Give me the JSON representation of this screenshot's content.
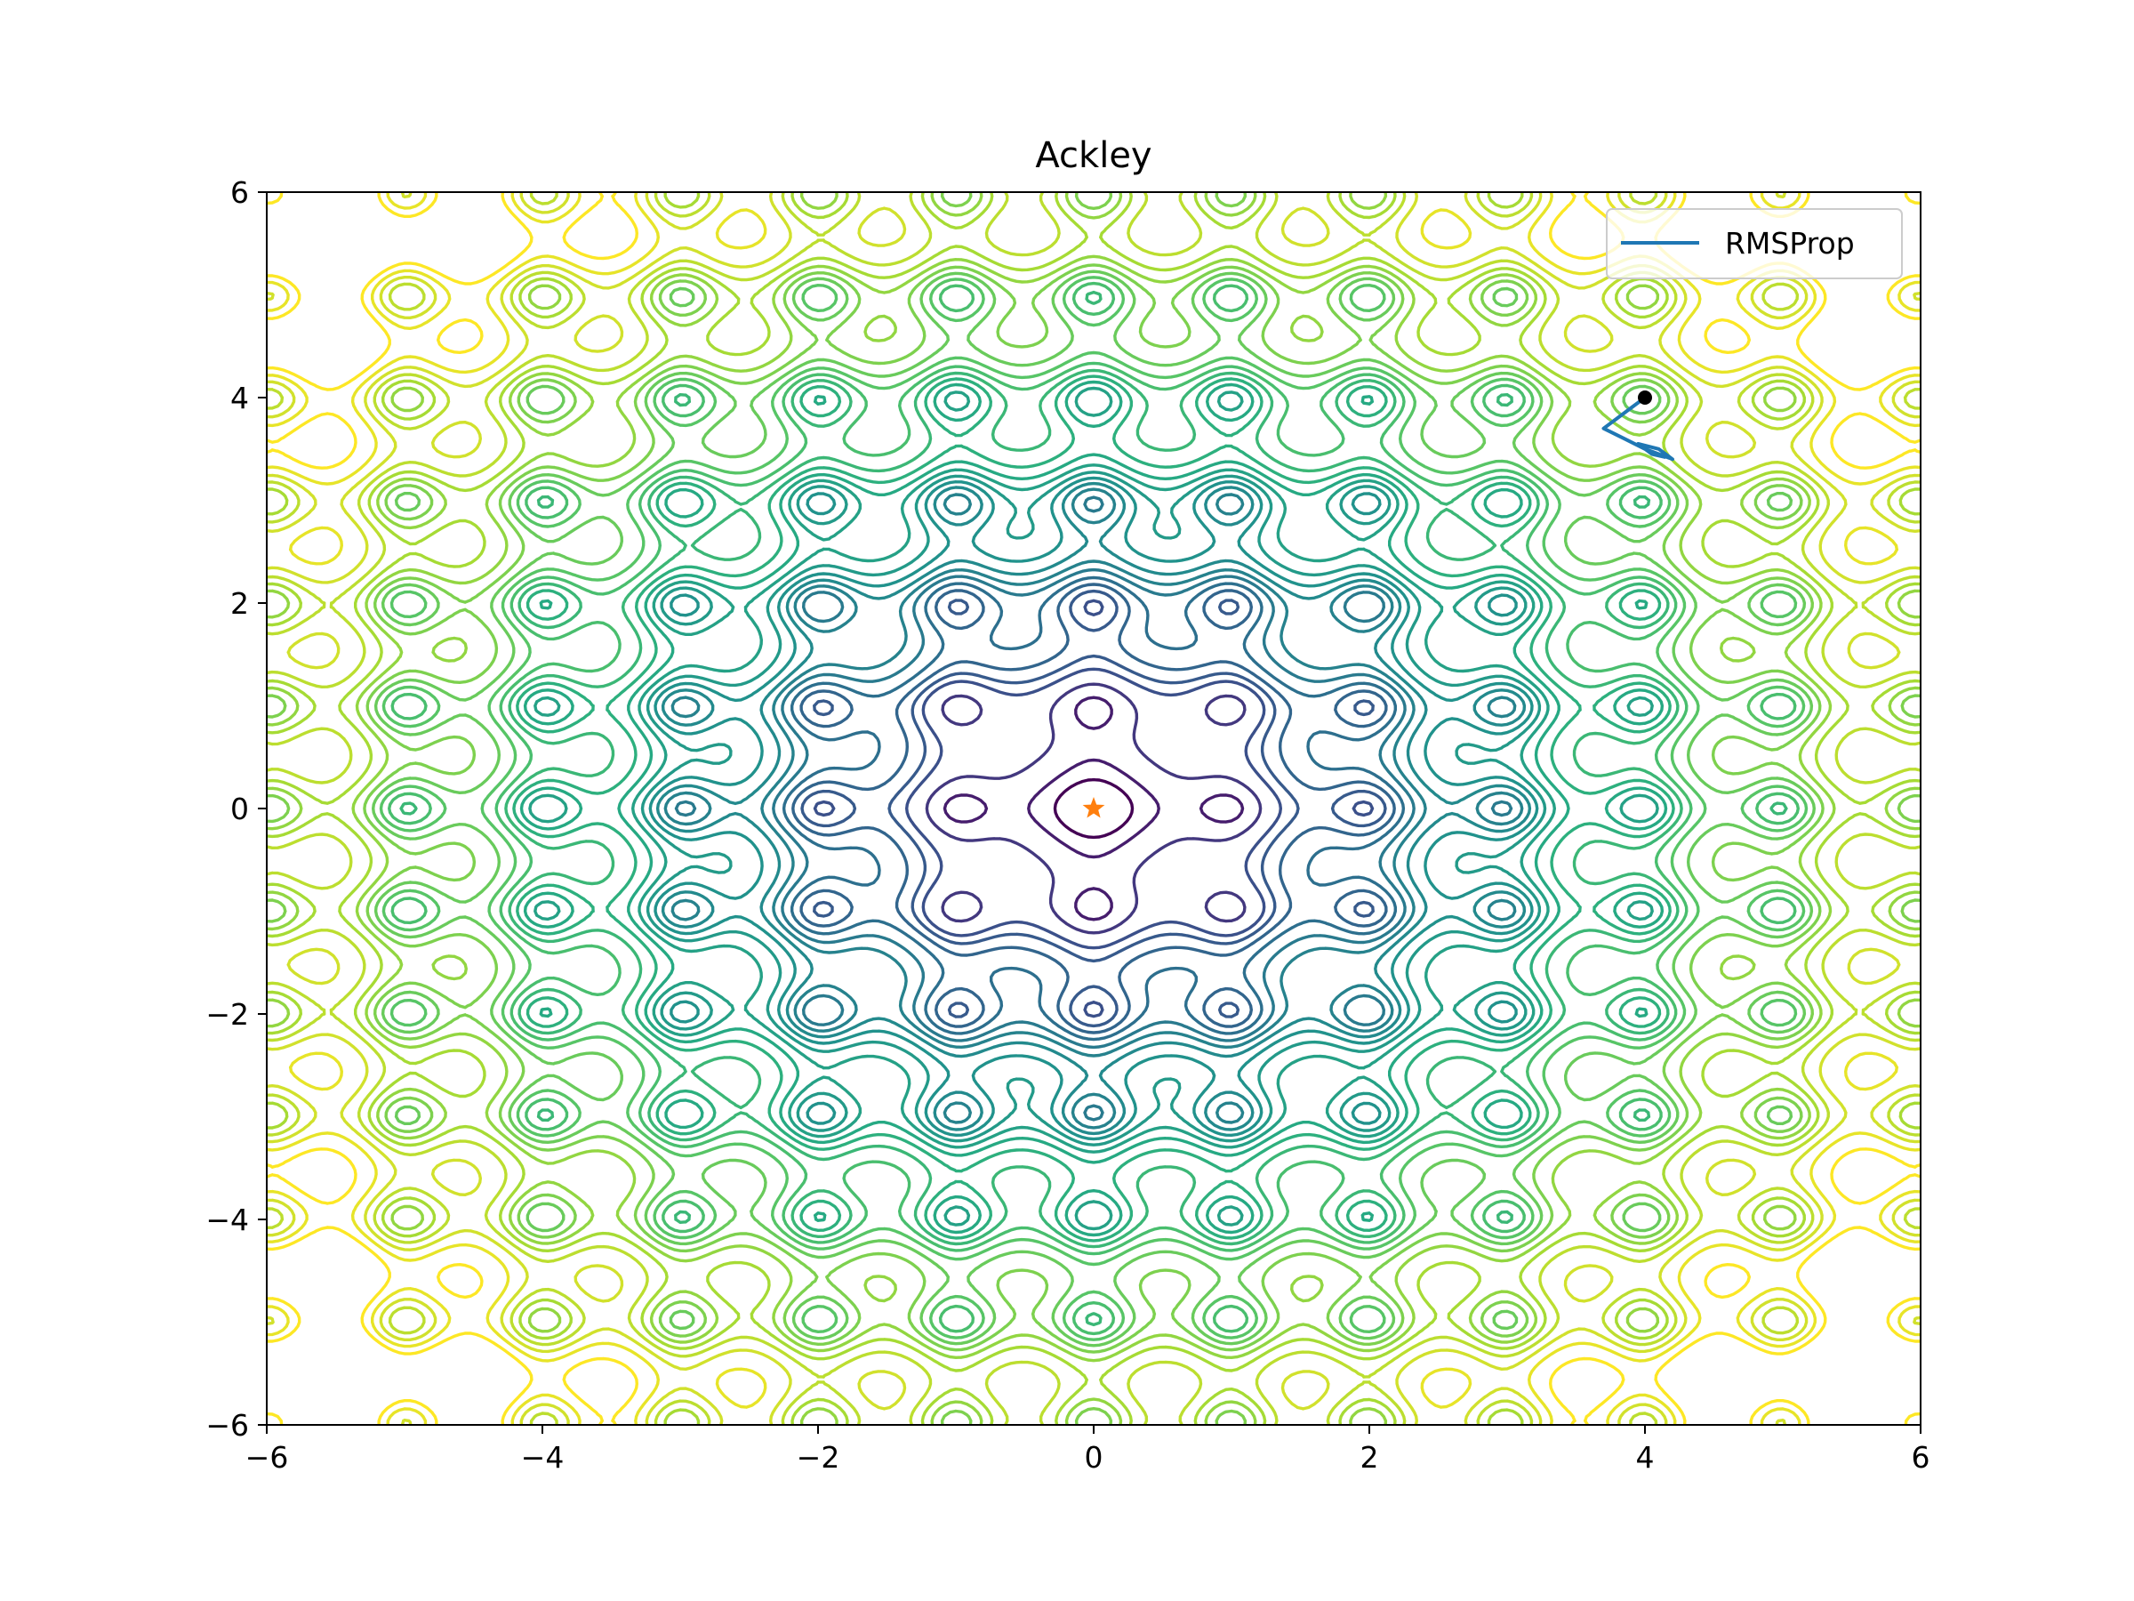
{
  "chart_data": {
    "type": "contour",
    "title": "Ackley",
    "xlabel": "",
    "ylabel": "",
    "xlim": [
      -6,
      6
    ],
    "ylim": [
      -6,
      6
    ],
    "x_ticks": [
      -6,
      -4,
      -2,
      0,
      2,
      4,
      6
    ],
    "y_ticks": [
      -6,
      -4,
      -2,
      0,
      2,
      4,
      6
    ],
    "x_tick_labels": [
      "−6",
      "−4",
      "−2",
      "0",
      "2",
      "4",
      "6"
    ],
    "y_tick_labels": [
      "−6",
      "−4",
      "−2",
      "0",
      "2",
      "4",
      "6"
    ],
    "grid": false,
    "legend_position": "top-right",
    "colormap": "viridis",
    "contour_levels": [
      2.0,
      3.0,
      4.0,
      5.0,
      5.5,
      6.0,
      6.5,
      7.0,
      7.4,
      7.8,
      8.2,
      8.6,
      9.0,
      9.4,
      9.8,
      10.2,
      10.6,
      11.0,
      11.4,
      11.8,
      12.2,
      12.6,
      13.0,
      13.4,
      13.8,
      14.2
    ],
    "series": [
      {
        "name": "RMSProp",
        "color": "#1f77b4",
        "x": [
          4.0,
          3.9,
          3.8,
          3.7,
          3.85,
          4.0,
          4.1,
          4.2,
          4.1,
          3.95,
          4.05,
          4.15
        ],
        "y": [
          4.0,
          3.9,
          3.8,
          3.7,
          3.6,
          3.5,
          3.45,
          3.4,
          3.5,
          3.55,
          3.45,
          3.42
        ]
      }
    ],
    "start_point": {
      "x": 4.0,
      "y": 4.0,
      "color": "#000000"
    },
    "global_minimum": {
      "x": 0.0,
      "y": 0.0,
      "color": "#ff7f0e",
      "marker": "star"
    }
  }
}
